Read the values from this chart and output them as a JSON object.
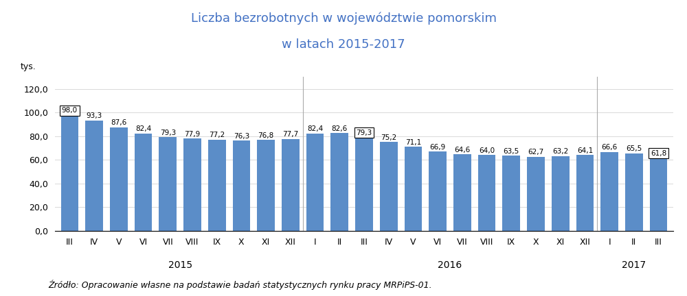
{
  "title_line1": "Liczba bezrobotnych w województwie pomorskim",
  "title_line2": "w latach 2015-2017",
  "ylabel": "tys.",
  "title_color": "#4472C4",
  "bar_color": "#5B8DC8",
  "background_color": "#FFFFFF",
  "values": [
    98.0,
    93.3,
    87.6,
    82.4,
    79.3,
    77.9,
    77.2,
    76.3,
    76.8,
    77.7,
    82.4,
    82.6,
    79.3,
    75.2,
    71.1,
    66.9,
    64.6,
    64.0,
    63.5,
    62.7,
    63.2,
    64.1,
    66.6,
    65.5,
    61.8
  ],
  "months": [
    "III",
    "IV",
    "V",
    "VI",
    "VII",
    "VIII",
    "IX",
    "X",
    "XI",
    "XII",
    "I",
    "II",
    "III",
    "IV",
    "V",
    "VI",
    "VII",
    "VIII",
    "IX",
    "X",
    "XI",
    "XII",
    "I",
    "II",
    "III"
  ],
  "year_labels": [
    "2015",
    "2016",
    "2017"
  ],
  "year_bar_ranges": [
    [
      0,
      9
    ],
    [
      10,
      21
    ],
    [
      22,
      24
    ]
  ],
  "year_separators": [
    9.5,
    21.5
  ],
  "boxed_indices": [
    0,
    12,
    24
  ],
  "ylim": [
    0,
    130
  ],
  "yticks": [
    0.0,
    20.0,
    40.0,
    60.0,
    80.0,
    100.0,
    120.0
  ],
  "grid_color": "#D9D9D9",
  "separator_color": "#AAAAAA",
  "source_text": "Źródło: Opracowanie własne na podstawie badań statystycznych rynku pracy MRPiPS-01.",
  "label_fontsize": 7.5,
  "title_fontsize": 13,
  "axis_fontsize": 9,
  "year_fontsize": 10,
  "source_fontsize": 9
}
